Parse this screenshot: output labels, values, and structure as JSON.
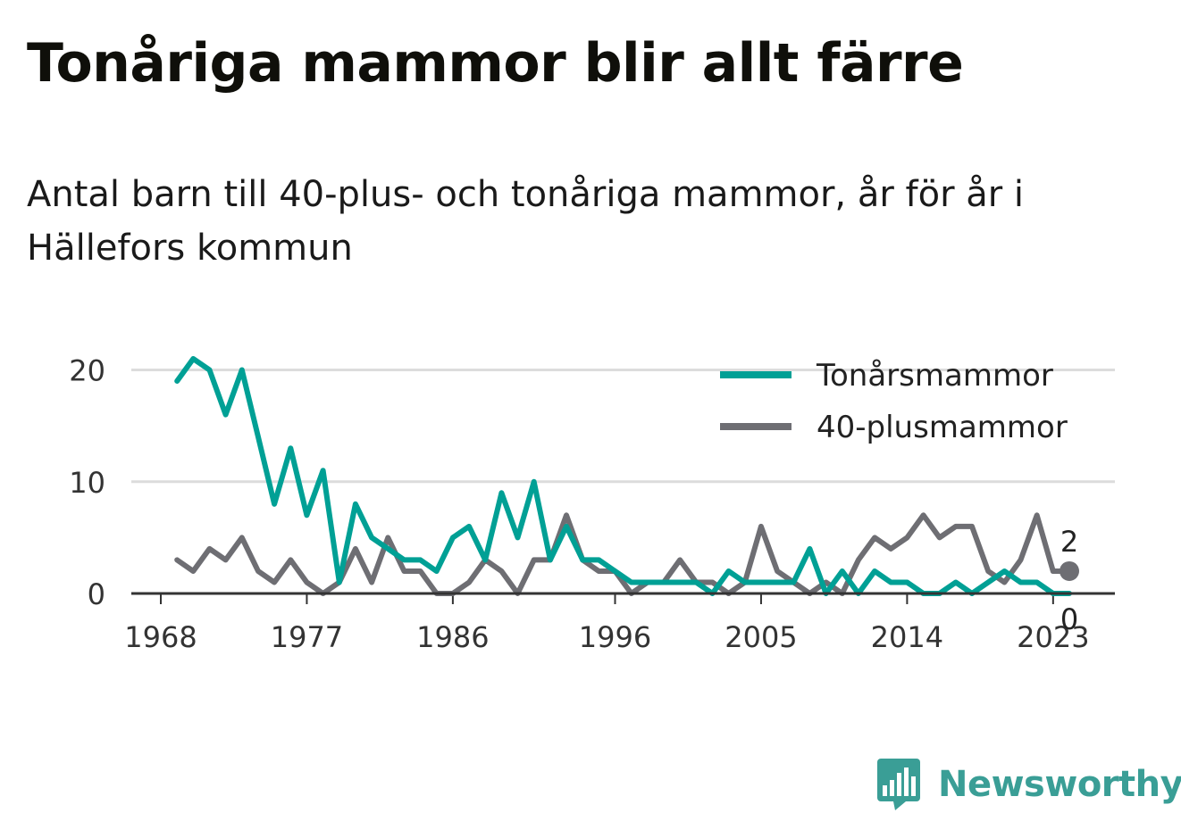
{
  "header": {
    "title": "Tonåriga mammor blir allt färre",
    "subtitle": "Antal barn till 40-plus- och tonåriga mammor, år för år i Hällefors kommun"
  },
  "brand": {
    "name": "Newsworthy",
    "color": "#3a9e96"
  },
  "chart_data": {
    "type": "line",
    "title": "Tonåriga mammor blir allt färre",
    "xlabel": "",
    "ylabel": "",
    "x_tick_labels": [
      "1968",
      "1977",
      "1986",
      "1996",
      "2005",
      "2014",
      "2023"
    ],
    "y_tick_labels": [
      "0",
      "10",
      "20"
    ],
    "ylim": [
      0,
      22
    ],
    "xlim": [
      1967,
      2025
    ],
    "grid": true,
    "legend": "top-right",
    "x": [
      1969,
      1970,
      1971,
      1972,
      1973,
      1974,
      1975,
      1976,
      1977,
      1978,
      1979,
      1980,
      1981,
      1982,
      1983,
      1984,
      1985,
      1986,
      1987,
      1988,
      1989,
      1990,
      1991,
      1992,
      1993,
      1994,
      1995,
      1996,
      1997,
      1998,
      1999,
      2000,
      2001,
      2002,
      2003,
      2004,
      2005,
      2006,
      2007,
      2008,
      2009,
      2010,
      2011,
      2012,
      2013,
      2014,
      2015,
      2016,
      2017,
      2018,
      2019,
      2020,
      2021,
      2022,
      2023,
      2024
    ],
    "series": [
      {
        "name": "Tonårsmammor",
        "color": "#00a095",
        "values": [
          19,
          21,
          20,
          16,
          20,
          14,
          8,
          13,
          7,
          11,
          1,
          8,
          5,
          4,
          3,
          3,
          2,
          5,
          6,
          3,
          9,
          5,
          10,
          3,
          6,
          3,
          3,
          2,
          1,
          1,
          1,
          1,
          1,
          0,
          2,
          1,
          1,
          1,
          1,
          4,
          0,
          2,
          0,
          2,
          1,
          1,
          0,
          0,
          1,
          0,
          1,
          2,
          1,
          1,
          0,
          0
        ]
      },
      {
        "name": "40-plusmammor",
        "color": "#6e6e73",
        "values": [
          3,
          2,
          4,
          3,
          5,
          2,
          1,
          3,
          1,
          0,
          1,
          4,
          1,
          5,
          2,
          2,
          0,
          0,
          1,
          3,
          2,
          0,
          3,
          3,
          7,
          3,
          2,
          2,
          0,
          1,
          1,
          3,
          1,
          1,
          0,
          1,
          6,
          2,
          1,
          0,
          1,
          0,
          3,
          5,
          4,
          5,
          7,
          5,
          6,
          6,
          2,
          1,
          3,
          7,
          2,
          2
        ]
      }
    ],
    "end_labels": [
      {
        "series": "40-plusmammor",
        "text": "2"
      },
      {
        "series": "Tonårsmammor",
        "text": "0"
      }
    ]
  }
}
